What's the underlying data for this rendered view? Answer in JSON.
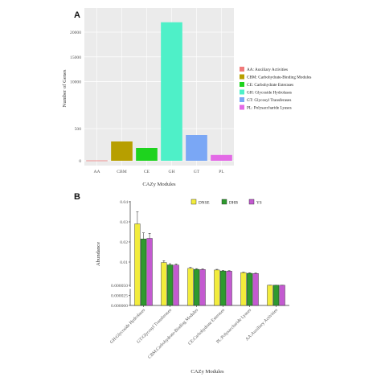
{
  "chart_data": [
    {
      "type": "bar",
      "panel_label": "A",
      "categories": [
        "AA",
        "CBM",
        "CE",
        "GH",
        "GT",
        "PL"
      ],
      "values": [
        5,
        300,
        200,
        22000,
        400,
        90
      ],
      "bar_colors": [
        "#f07a7a",
        "#b79f00",
        "#1ed31e",
        "#4ef0c8",
        "#7aa7f5",
        "#e36ae6"
      ],
      "xlabel": "CAZy Modules",
      "ylabel": "Number of Genes",
      "yticks": [
        {
          "label": "0",
          "value": 0
        },
        {
          "label": "500",
          "value": 500
        },
        {
          "label": "10000",
          "value": 10000
        },
        {
          "label": "15000",
          "value": 15000
        },
        {
          "label": "20000",
          "value": 20000
        }
      ],
      "grid": true,
      "legend_position": "right",
      "legend": [
        {
          "label": "AA: Auxiliary Activities",
          "color": "#f07a7a"
        },
        {
          "label": "CBM: Carbohydrate-Binding Modules",
          "color": "#b79f00"
        },
        {
          "label": "CE: Carbohydrate Esterases",
          "color": "#1ed31e"
        },
        {
          "label": "GH: Glycoside Hydrolases",
          "color": "#4ef0c8"
        },
        {
          "label": "GT: Glycosyl Transferases",
          "color": "#7aa7f5"
        },
        {
          "label": "PL: Polysaccharide Lyases",
          "color": "#e36ae6"
        }
      ]
    },
    {
      "type": "bar",
      "panel_label": "B",
      "categories": [
        "GH:Glycoside Hydrolases",
        "GT:Glycosyl Transferases",
        "CBM:Carbohydrate-Binding Modules",
        "CE:Carbohydrate Esterases",
        "PL:Polysaccharide Lyases",
        "AA:Auxiliary Activities"
      ],
      "series": [
        {
          "name": "DNSE",
          "color": "#f2ec3c",
          "values": [
            0.029,
            0.0098,
            0.0073,
            0.0066,
            0.0055,
            0.0001
          ],
          "errors": [
            0.006,
            0.0009,
            0.0004,
            0.0003,
            0.0002,
            1e-05
          ]
        },
        {
          "name": "DHB",
          "color": "#2e9a2e",
          "values": [
            0.0215,
            0.0088,
            0.0069,
            0.0062,
            0.0052,
            0.00012
          ],
          "errors": [
            0.003,
            0.0005,
            0.0003,
            0.0002,
            0.0002,
            1e-05
          ]
        },
        {
          "name": "YS",
          "color": "#c35ad0",
          "values": [
            0.0218,
            0.0087,
            0.0068,
            0.0061,
            0.0051,
            0.0001
          ],
          "errors": [
            0.0025,
            0.0005,
            0.0003,
            0.0002,
            0.0002,
            1e-05
          ]
        }
      ],
      "xlabel": "CAZy Modules",
      "ylabel": "Abundance",
      "yticks": [
        {
          "label": "0.000000",
          "value": 0
        },
        {
          "label": "0.000025",
          "value": 2.5e-05
        },
        {
          "label": "0.000050",
          "value": 5e-05
        },
        {
          "label": "0.01",
          "value": 0.01
        },
        {
          "label": "0.02",
          "value": 0.02
        },
        {
          "label": "0.03",
          "value": 0.03
        },
        {
          "label": "0.04",
          "value": 0.04
        }
      ],
      "legend_position": "top"
    }
  ]
}
